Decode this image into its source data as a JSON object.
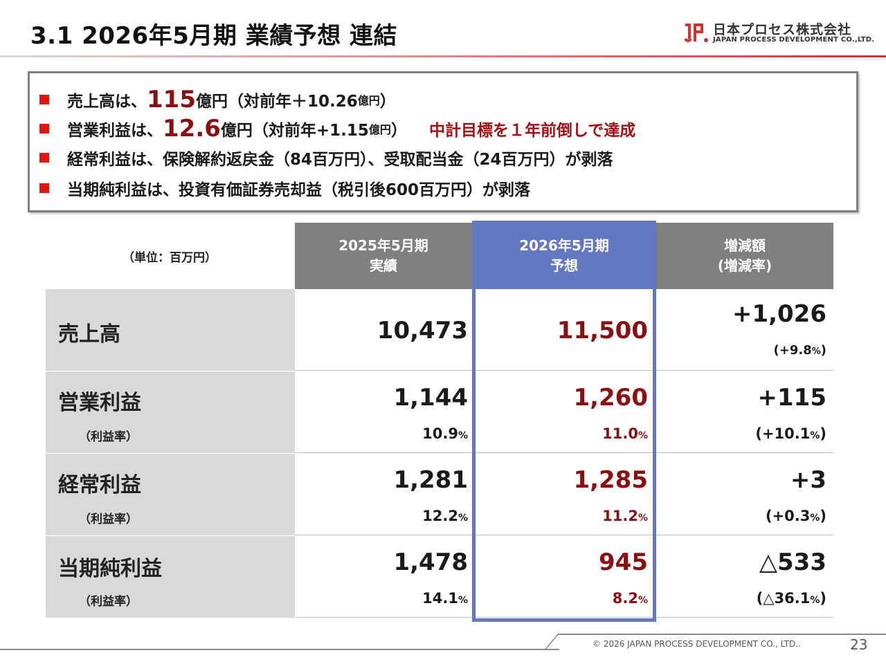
{
  "header": {
    "title": "3.1  2026年5月期  業績予想 連結",
    "logo_jp": "日本プロセス株式会社",
    "logo_en": "JAPAN PROCESS DEVELOPMENT CO.,LTD."
  },
  "bullets": [
    {
      "prefix": "売上高は、",
      "highlight": "115",
      "after": "億円（対前年＋10.26",
      "unit_small": "億円",
      "close": "）",
      "extra": ""
    },
    {
      "prefix": "営業利益は、",
      "highlight": "12.6",
      "after": "億円（対前年+1.15",
      "unit_small": "億円",
      "close": "）",
      "extra": "中計目標を１年前倒しで達成"
    },
    {
      "text": "経常利益は、保険解約返戻金（84百万円）、受取配当金（24百万円）が剥落"
    },
    {
      "text": "当期純利益は、投資有価証券売却益（税引後600百万円）が剥落"
    }
  ],
  "table": {
    "unit": "（単位：百万円）",
    "headers": {
      "prev_line1": "2025年5月期",
      "prev_line2": "実績",
      "fc_line1": "2026年5月期",
      "fc_line2": "予想",
      "diff_line1": "増減額",
      "diff_line2": "(増減率)"
    },
    "rows": [
      {
        "label": "売上高",
        "sub": "",
        "prev": "10,473",
        "prev_rate": "",
        "fc": "11,500",
        "fc_rate": "",
        "diff": "+1,026",
        "diff_rate": "(+9.8",
        "diff_rate_close": ")"
      },
      {
        "label": "営業利益",
        "sub": "（利益率）",
        "prev": "1,144",
        "prev_rate": "10.9",
        "fc": "1,260",
        "fc_rate": "11.0",
        "diff": "+115",
        "diff_rate": "(+10.1",
        "diff_rate_close": ")"
      },
      {
        "label": "経常利益",
        "sub": "（利益率）",
        "prev": "1,281",
        "prev_rate": "12.2",
        "fc": "1,285",
        "fc_rate": "11.2",
        "diff": "+3",
        "diff_rate": "(+0.3",
        "diff_rate_close": ")"
      },
      {
        "label": "当期純利益",
        "sub": "（利益率）",
        "prev": "1,478",
        "prev_rate": "14.1",
        "fc": "945",
        "fc_rate": "8.2",
        "diff": "△533",
        "diff_rate": "(△36.1",
        "diff_rate_close": ")"
      }
    ],
    "percent_sign": "%"
  },
  "footer": {
    "copyright": "© 2026 JAPAN PROCESS DEVELOPMENT CO., LTD..",
    "page": "23"
  },
  "colors": {
    "accent_red": "#8b0f10",
    "bullet_red": "#e3120b",
    "forecast_blue": "#6478c2",
    "header_gray": "#808080"
  }
}
